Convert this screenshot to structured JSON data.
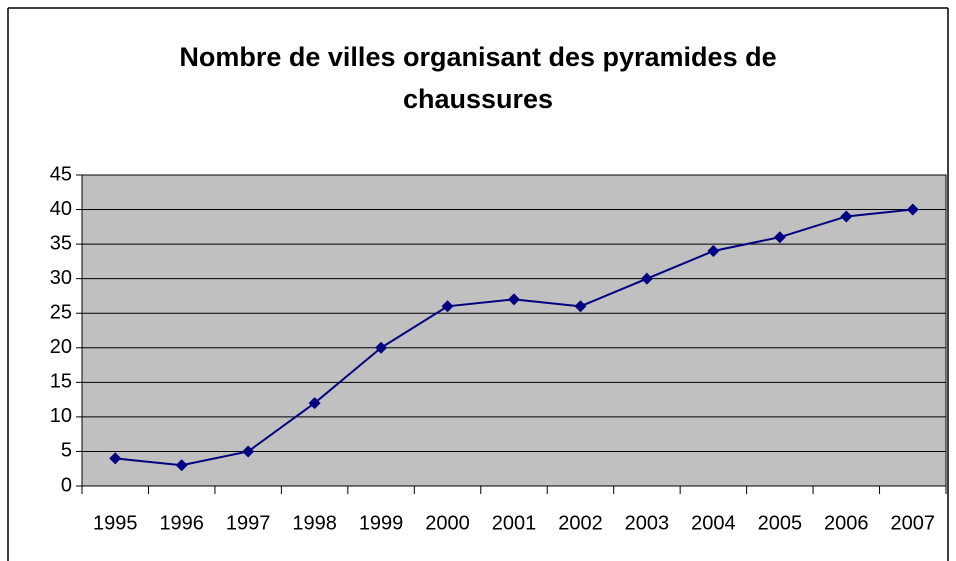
{
  "chart_data": {
    "type": "line",
    "title": "Nombre de villes organisant des pyramides de chaussures",
    "categories": [
      "1995",
      "1996",
      "1997",
      "1998",
      "1999",
      "2000",
      "2001",
      "2002",
      "2003",
      "2004",
      "2005",
      "2006",
      "2007"
    ],
    "series": [
      {
        "name": "Nombre de villes",
        "color": "#000080",
        "values": [
          4,
          3,
          5,
          12,
          20,
          26,
          27,
          26,
          30,
          34,
          36,
          39,
          40
        ]
      }
    ],
    "ylim": [
      0,
      45
    ],
    "yticks": [
      0,
      5,
      10,
      15,
      20,
      25,
      30,
      35,
      40,
      45
    ],
    "grid": true,
    "legend": false,
    "plot_background": "#c0c0c0"
  }
}
